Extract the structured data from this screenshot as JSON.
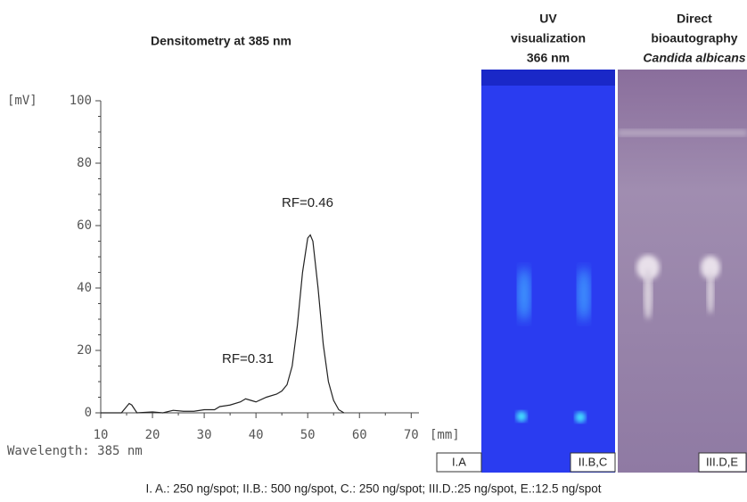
{
  "chart_data": {
    "type": "line",
    "title": "Densitometry at 385 nm",
    "y_label": "[mV]",
    "x_label": "[mm]",
    "footnote": "Wavelength: 385 nm",
    "annotations": [
      "RF=0.46",
      "RF=0.31"
    ],
    "x": [
      10,
      14,
      15,
      15.5,
      16,
      17,
      20,
      22,
      24,
      26,
      28,
      30,
      32,
      33,
      35,
      37,
      38,
      39,
      40,
      42,
      44,
      45,
      46,
      47,
      48,
      49,
      50,
      50.5,
      51,
      52,
      53,
      54,
      55,
      56,
      57
    ],
    "series": [
      {
        "name": "Densitometry",
        "color": "#222222",
        "values": [
          0,
          0,
          2,
          3,
          2.5,
          0,
          0.3,
          0,
          0.8,
          0.5,
          0.5,
          1,
          1,
          2,
          2.5,
          3.5,
          4.5,
          4,
          3.5,
          5,
          6,
          7,
          9,
          15,
          28,
          45,
          56,
          57,
          55,
          40,
          22,
          10,
          4,
          1,
          0
        ]
      }
    ],
    "xlim": [
      10,
      71.5
    ],
    "ylim": [
      0,
      100
    ],
    "xticks": [
      10,
      20,
      30,
      40,
      50,
      60,
      70
    ],
    "yticks": [
      0,
      20,
      40,
      60,
      80,
      100
    ]
  },
  "panels": [
    {
      "title": [
        "UV",
        "visualization",
        "366 nm"
      ],
      "labels": [
        "I.A",
        "II.B,C"
      ]
    },
    {
      "title": [
        "Direct",
        "bioautography",
        "Candida albicans"
      ],
      "labels": [
        "III.D,E"
      ]
    }
  ],
  "caption": "I. A.: 250 ng/spot; II.B.: 500 ng/spot, C.: 250 ng/spot; III.D.:25 ng/spot, E.:12.5 ng/spot"
}
